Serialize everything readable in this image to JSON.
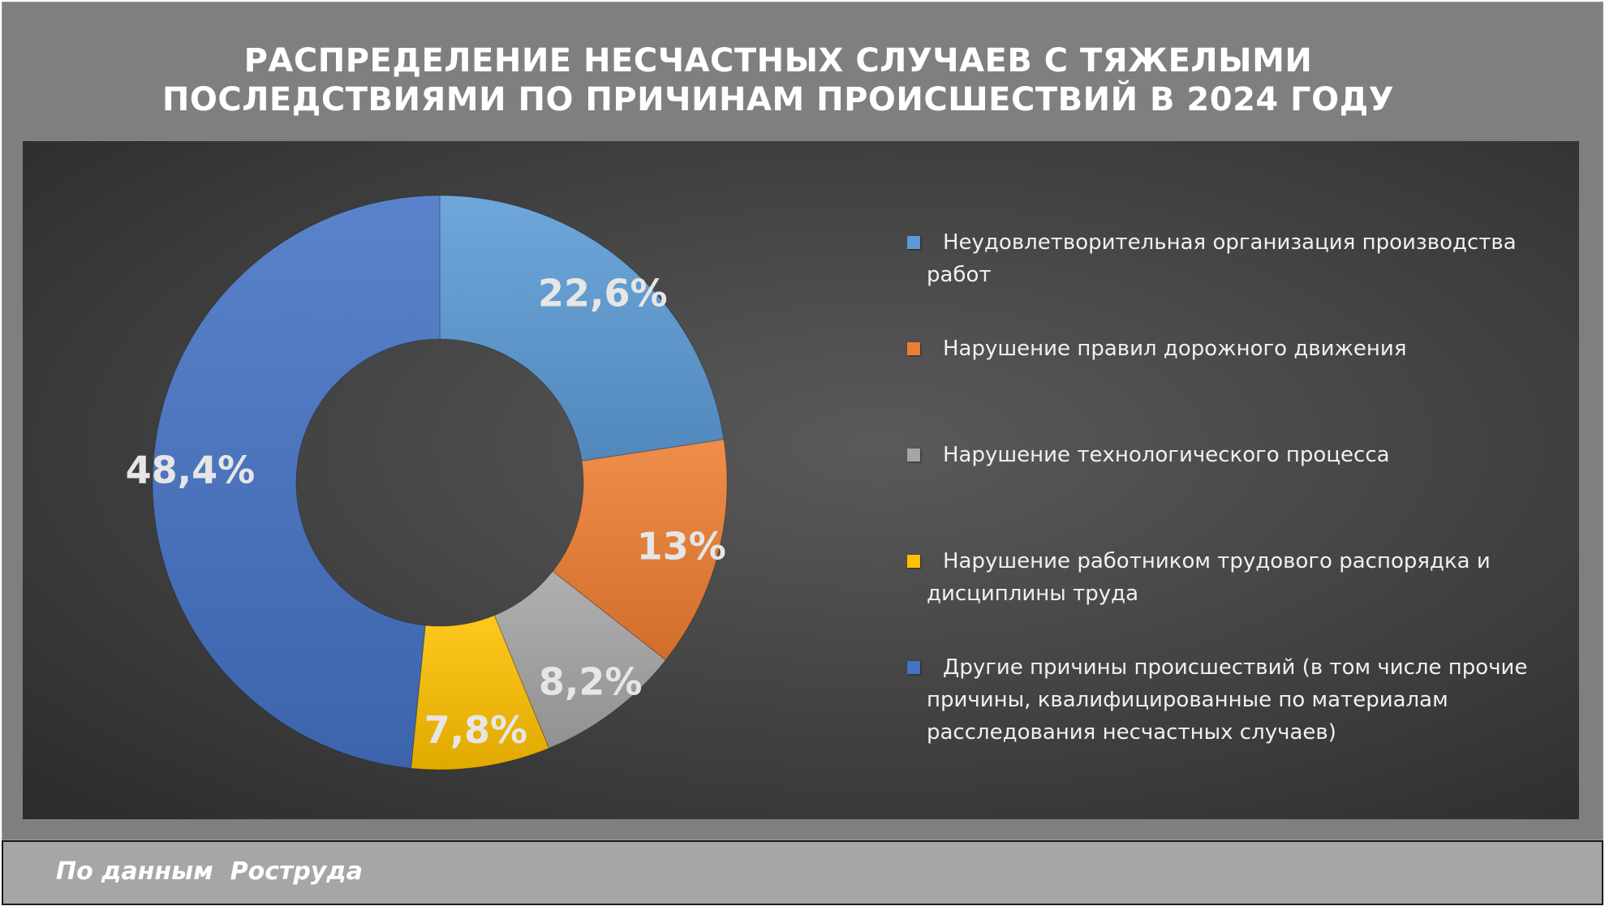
{
  "title_lines": [
    "РАСПРЕДЕЛЕНИЕ НЕСЧАСТНЫХ СЛУЧАЕВ С ТЯЖЕЛЫМИ",
    "ПОСЛЕДСТВИЯМИ ПО ПРИЧИНАМ ПРОИСШЕСТВИЙ В 2024 ГОДУ"
  ],
  "source": "По данным  Роструда",
  "chart_data": {
    "type": "pie",
    "donut": true,
    "title": "РАСПРЕДЕЛЕНИЕ НЕСЧАСТНЫХ СЛУЧАЕВ С ТЯЖЕЛЫМИ ПОСЛЕДСТВИЯМИ ПО ПРИЧИНАМ ПРОИСШЕСТВИЙ В 2024 ГОДУ",
    "unit": "%",
    "legend_position": "right",
    "slices": [
      {
        "label": "Неудовлетворительная организация производства работ",
        "value": 22.6,
        "display": "22,6%",
        "color": "#5b9bd5"
      },
      {
        "label": "Нарушение правил дорожного движения",
        "value": 13,
        "display": "13%",
        "color": "#ed7d31"
      },
      {
        "label": "Нарушение технологического процесса",
        "value": 8.2,
        "display": "8,2%",
        "color": "#a5a5a5"
      },
      {
        "label": "Нарушение работником трудового распорядка и дисциплины труда",
        "value": 7.8,
        "display": "7,8%",
        "color": "#ffc000"
      },
      {
        "label": "Другие причины происшествий (в том числе прочие причины, квалифицированные по материалам расследования несчастных случаев)",
        "value": 48.4,
        "display": "48,4%",
        "color": "#4472c4"
      }
    ]
  }
}
